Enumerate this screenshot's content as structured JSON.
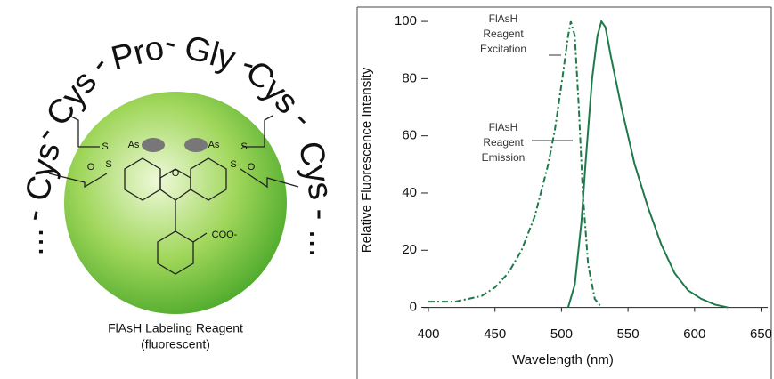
{
  "diagram": {
    "peptide": [
      "...",
      "- Cys",
      "- Cys -",
      "Pro",
      "- Gly -",
      "Cys -",
      "Cys",
      "- ..."
    ],
    "atoms": [
      "S",
      "As",
      "As",
      "S",
      "S",
      "S",
      "O",
      "O",
      "O",
      "COO-"
    ],
    "caption": [
      "FlAsH Labeling Reagent",
      "(fluorescent)"
    ]
  },
  "chart_data": {
    "type": "line",
    "xlabel": "Wavelength (nm)",
    "ylabel": "Relative Fluorescence Intensity",
    "xlim": [
      400,
      655
    ],
    "xticks": [
      400,
      450,
      500,
      550,
      600,
      650
    ],
    "ylim": [
      -2,
      105
    ],
    "yticks": [
      0,
      20,
      40,
      60,
      80,
      100
    ],
    "annotations": [
      [
        "FlAsH",
        "Reagent",
        "Excitation"
      ],
      [
        "FlAsH",
        "Reagent",
        "Emission"
      ]
    ],
    "series": [
      {
        "color": "#1e7a4a",
        "dash": "7 3 2 3",
        "x": [
          400,
          420,
          440,
          450,
          460,
          470,
          480,
          490,
          495,
          500,
          505,
          507,
          510,
          513,
          516,
          520,
          525,
          530
        ],
        "values": [
          2,
          2,
          4,
          7,
          12,
          20,
          32,
          50,
          62,
          78,
          95,
          100,
          95,
          70,
          40,
          15,
          3,
          0
        ]
      },
      {
        "color": "#1e7a4a",
        "dash": "none",
        "x": [
          505,
          510,
          515,
          518,
          520,
          523,
          527,
          530,
          533,
          537,
          545,
          555,
          565,
          575,
          585,
          595,
          605,
          615,
          625
        ],
        "values": [
          0,
          8,
          30,
          50,
          62,
          80,
          95,
          100,
          98,
          88,
          70,
          50,
          35,
          22,
          12,
          6,
          3,
          1,
          0
        ]
      }
    ]
  }
}
